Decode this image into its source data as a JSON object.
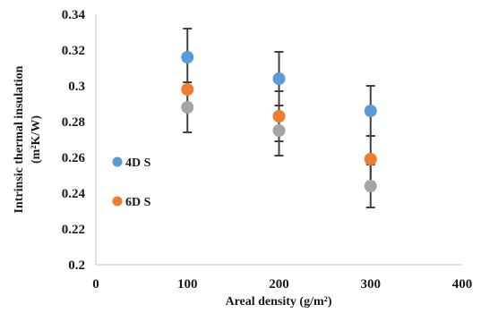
{
  "chart_data": {
    "type": "scatter",
    "title": "",
    "xlabel": "Areal density (g/m²)",
    "ylabel_line1": "Intrinsic thermal insulation",
    "ylabel_line2": "(m²K/W)",
    "xlim": [
      0,
      400
    ],
    "ylim": [
      0.2,
      0.34
    ],
    "xticks": [
      "0",
      "100",
      "200",
      "300",
      "400"
    ],
    "yticks": [
      "0.2",
      "0.22",
      "0.24",
      "0.26",
      "0.28",
      "0.3",
      "0.32",
      "0.34"
    ],
    "grid": false,
    "legend_placement": "left-inside",
    "series": [
      {
        "name": "4D S",
        "color": "#5b9bd5",
        "x": [
          100,
          200,
          300
        ],
        "y": [
          0.316,
          0.304,
          0.286
        ],
        "err": [
          0.016,
          0.015,
          0.014
        ]
      },
      {
        "name": "6D S",
        "color": "#ed7d31",
        "x": [
          100,
          200,
          300
        ],
        "y": [
          0.298,
          0.283,
          0.259
        ],
        "err": [
          0.0,
          0.014,
          0.013
        ]
      },
      {
        "name": "",
        "color": "#a5a5a5",
        "x": [
          100,
          200,
          300
        ],
        "y": [
          0.288,
          0.275,
          0.244
        ],
        "err": [
          0.014,
          0.014,
          0.012
        ]
      }
    ]
  }
}
